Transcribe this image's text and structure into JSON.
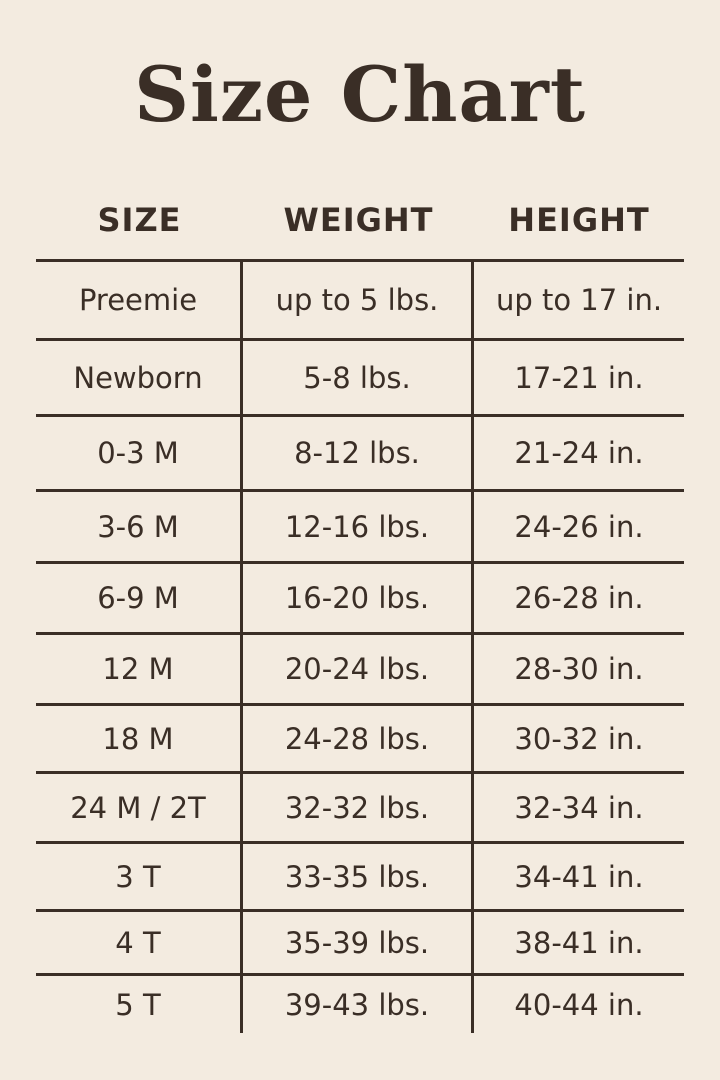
{
  "title": "Size Chart",
  "headers": [
    "SIZE",
    "WEIGHT",
    "HEIGHT"
  ],
  "rows": [
    [
      "Preemie",
      "up to 5 lbs.",
      "up to 17 in."
    ],
    [
      "Newborn",
      "5-8 lbs.",
      "17-21 in."
    ],
    [
      "0-3 M",
      "8-12 lbs.",
      "21-24 in."
    ],
    [
      "3-6 M",
      "12-16 lbs.",
      "24-26 in."
    ],
    [
      "6-9 M",
      "16-20 lbs.",
      "26-28 in."
    ],
    [
      "12 M",
      "20-24 lbs.",
      "28-30 in."
    ],
    [
      "18 M",
      "24-28 lbs.",
      "30-32 in."
    ],
    [
      "24 M / 2T",
      "32-32 lbs.",
      "32-34 in."
    ],
    [
      "3 T",
      "33-35 lbs.",
      "34-41 in."
    ],
    [
      "4 T",
      "35-39 lbs.",
      "38-41 in."
    ],
    [
      "5 T",
      "39-43 lbs.",
      "40-44 in."
    ]
  ],
  "colors": {
    "background": "#f3ebe0",
    "text": "#3a2e26"
  }
}
